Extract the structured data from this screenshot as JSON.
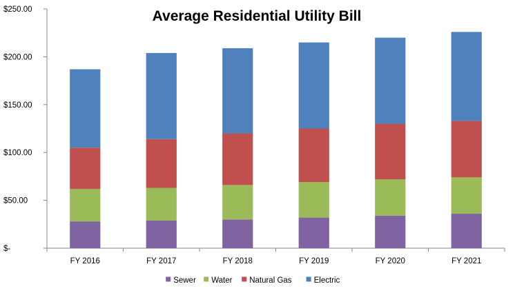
{
  "chart_data": {
    "type": "bar",
    "stacked": true,
    "title": "Average Residential Utility Bill",
    "xlabel": "",
    "ylabel": "",
    "categories": [
      "FY 2016",
      "FY 2017",
      "FY 2018",
      "FY 2019",
      "FY 2020",
      "FY 2021"
    ],
    "series": [
      {
        "name": "Sewer",
        "color": "#8064A2",
        "values": [
          28,
          29,
          30,
          32,
          34,
          36
        ]
      },
      {
        "name": "Water",
        "color": "#9BBB59",
        "values": [
          34,
          34,
          36,
          37,
          38,
          38
        ]
      },
      {
        "name": "Natural Gas",
        "color": "#C0504D",
        "values": [
          43,
          51,
          54,
          56,
          58,
          59
        ]
      },
      {
        "name": "Electric",
        "color": "#4F81BD",
        "values": [
          82,
          90,
          89,
          90,
          90,
          93
        ]
      }
    ],
    "ylim": [
      0,
      250
    ],
    "yticks": [
      0,
      50,
      100,
      150,
      200,
      250
    ],
    "ytick_labels": [
      "$-",
      "$50.00",
      "$100.00",
      "$150.00",
      "$200.00",
      "$250.00"
    ],
    "grid": false,
    "legend_position": "bottom"
  }
}
